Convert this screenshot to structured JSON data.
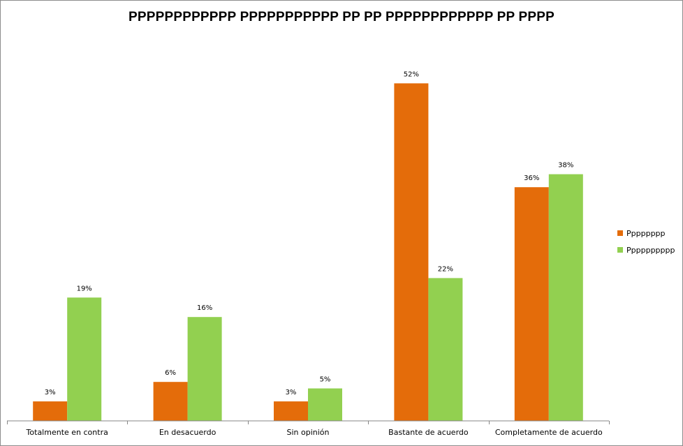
{
  "chart_data": {
    "type": "bar",
    "title": "PPPPPPPPPPPP PPPPPPPPPPP PP PP PPPPPPPPPPPP PP PPPP",
    "categories": [
      "Totalmente en contra",
      "En desacuerdo",
      "Sin opinión",
      "Bastante de acuerdo",
      "Completamente de acuerdo"
    ],
    "series": [
      {
        "name": "Pppppppp",
        "color": "#e46c0a",
        "values": [
          3,
          6,
          3,
          52,
          36
        ],
        "labels": [
          "3%",
          "6%",
          "3%",
          "52%",
          "36%"
        ]
      },
      {
        "name": "Pppppppppp",
        "color": "#92d050",
        "values": [
          19,
          16,
          5,
          22,
          38
        ],
        "labels": [
          "19%",
          "16%",
          "5%",
          "22%",
          "38%"
        ]
      }
    ],
    "ylim": [
      0,
      55
    ],
    "value_format": "percent",
    "y_axis_visible": false,
    "grid": false,
    "legend_position": "right"
  }
}
